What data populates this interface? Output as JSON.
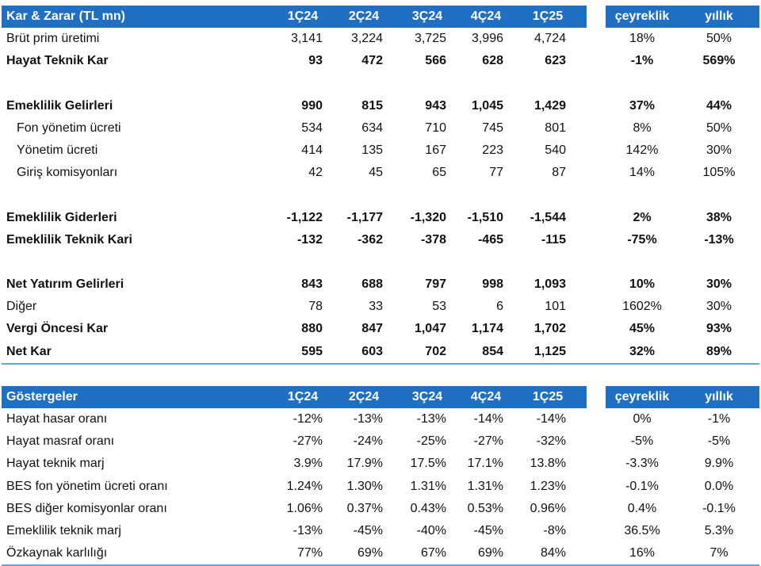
{
  "pl_table": {
    "header": [
      "Kar & Zarar (TL mn)",
      "1Ç24",
      "2Ç24",
      "3Ç24",
      "4Ç24",
      "1Ç25",
      "çeyreklik",
      "yıllık"
    ],
    "rows": [
      {
        "label": "Brüt prim üretimi",
        "values": [
          "3,141",
          "3,224",
          "3,725",
          "3,996",
          "4,724",
          "18%",
          "50%"
        ],
        "bold": false,
        "indent": false
      },
      {
        "label": "Hayat Teknik Kar",
        "values": [
          "93",
          "472",
          "566",
          "628",
          "623",
          "-1%",
          "569%"
        ],
        "bold": true,
        "indent": false
      },
      {
        "blank": true
      },
      {
        "label": "Emeklilik Gelirleri",
        "values": [
          "990",
          "815",
          "943",
          "1,045",
          "1,429",
          "37%",
          "44%"
        ],
        "bold": true,
        "indent": false
      },
      {
        "label": "Fon yönetim ücreti",
        "values": [
          "534",
          "634",
          "710",
          "745",
          "801",
          "8%",
          "50%"
        ],
        "bold": false,
        "indent": true
      },
      {
        "label": "Yönetim ücreti",
        "values": [
          "414",
          "135",
          "167",
          "223",
          "540",
          "142%",
          "30%"
        ],
        "bold": false,
        "indent": true
      },
      {
        "label": "Giriş komisyonları",
        "values": [
          "42",
          "45",
          "65",
          "77",
          "87",
          "14%",
          "105%"
        ],
        "bold": false,
        "indent": true
      },
      {
        "blank": true
      },
      {
        "label": "Emeklilik Giderleri",
        "values": [
          "-1,122",
          "-1,177",
          "-1,320",
          "-1,510",
          "-1,544",
          "2%",
          "38%"
        ],
        "bold": true,
        "indent": false
      },
      {
        "label": "Emeklilik Teknik Kari",
        "values": [
          "-132",
          "-362",
          "-378",
          "-465",
          "-115",
          "-75%",
          "-13%"
        ],
        "bold": true,
        "indent": false
      },
      {
        "blank": true
      },
      {
        "label": "Net Yatırım Gelirleri",
        "values": [
          "843",
          "688",
          "797",
          "998",
          "1,093",
          "10%",
          "30%"
        ],
        "bold": true,
        "indent": false
      },
      {
        "label": "Diğer",
        "values": [
          "78",
          "33",
          "53",
          "6",
          "101",
          "1602%",
          "30%"
        ],
        "bold": false,
        "indent": false
      },
      {
        "label": "Vergi Öncesi Kar",
        "values": [
          "880",
          "847",
          "1,047",
          "1,174",
          "1,702",
          "45%",
          "93%"
        ],
        "bold": true,
        "indent": false
      },
      {
        "label": "Net Kar",
        "values": [
          "595",
          "603",
          "702",
          "854",
          "1,125",
          "32%",
          "89%"
        ],
        "bold": true,
        "indent": false
      }
    ]
  },
  "kpi_table": {
    "header": [
      "Göstergeler",
      "1Ç24",
      "2Ç24",
      "3Ç24",
      "4Ç24",
      "1Ç25",
      "çeyreklik",
      "yıllık"
    ],
    "rows": [
      {
        "label": "Hayat hasar oranı",
        "values": [
          "-12%",
          "-13%",
          "-13%",
          "-14%",
          "-14%",
          "0%",
          "-1%"
        ],
        "bold": false,
        "indent": false
      },
      {
        "label": "Hayat masraf oranı",
        "values": [
          "-27%",
          "-24%",
          "-25%",
          "-27%",
          "-32%",
          "-5%",
          "-5%"
        ],
        "bold": false,
        "indent": false
      },
      {
        "label": "Hayat teknik marj",
        "values": [
          "3.9%",
          "17.9%",
          "17.5%",
          "17.1%",
          "13.8%",
          "-3.3%",
          "9.9%"
        ],
        "bold": false,
        "indent": false
      },
      {
        "label": "BES fon yönetim ücreti oranı",
        "values": [
          "1.24%",
          "1.30%",
          "1.31%",
          "1.31%",
          "1.23%",
          "-0.1%",
          "0.0%"
        ],
        "bold": false,
        "indent": false
      },
      {
        "label": "BES diğer komisyonlar oranı",
        "values": [
          "1.06%",
          "0.37%",
          "0.43%",
          "0.53%",
          "0.96%",
          "0.4%",
          "-0.1%"
        ],
        "bold": false,
        "indent": false
      },
      {
        "label": "Emeklilik teknik marj",
        "values": [
          "-13%",
          "-45%",
          "-40%",
          "-45%",
          "-8%",
          "36.5%",
          "5.3%"
        ],
        "bold": false,
        "indent": false
      },
      {
        "label": "Özkaynak karlılığı",
        "values": [
          "77%",
          "69%",
          "67%",
          "69%",
          "84%",
          "16%",
          "7%"
        ],
        "bold": false,
        "indent": false
      }
    ]
  }
}
